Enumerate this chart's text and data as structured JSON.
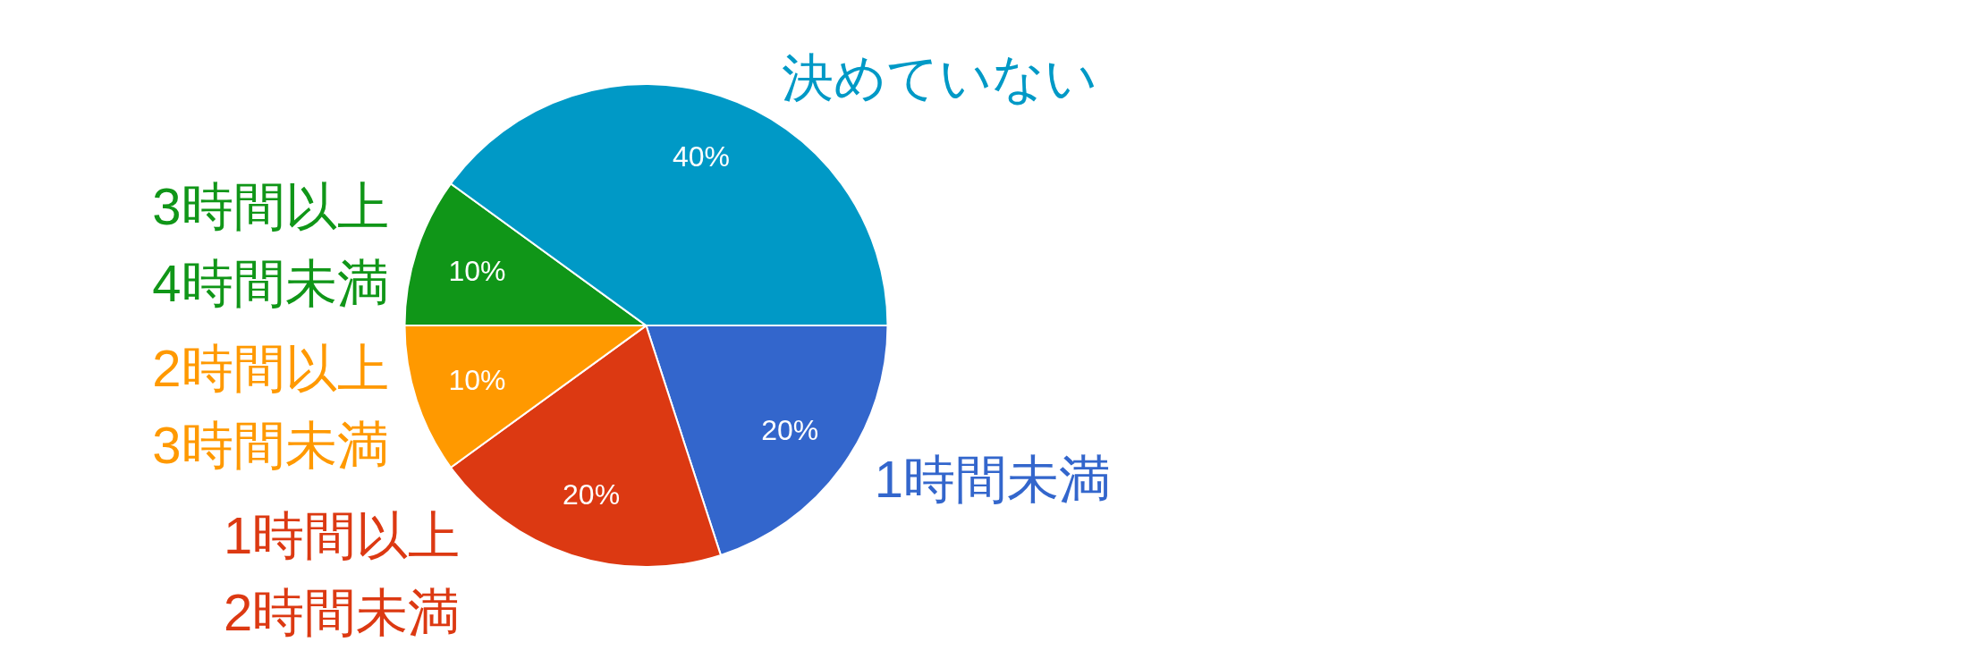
{
  "chart_data": {
    "type": "pie",
    "categories": [
      "1時間未満",
      "1時間以上\n2時間未満",
      "2時間以上\n3時間未満",
      "3時間以上\n4時間未満",
      "決めていない"
    ],
    "values": [
      20,
      20,
      10,
      10,
      40
    ],
    "colors": [
      "#3366cc",
      "#dc3912",
      "#ff9900",
      "#109618",
      "#0099c6"
    ],
    "value_labels": [
      "20%",
      "20%",
      "10%",
      "10%",
      "40%"
    ]
  }
}
